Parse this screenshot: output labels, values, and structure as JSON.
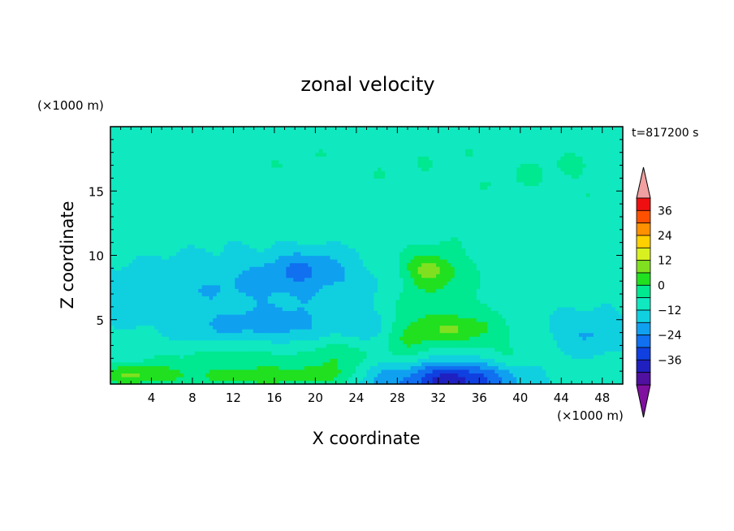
{
  "chart_data": {
    "type": "heatmap",
    "title": "zonal velocity",
    "xlabel": "X coordinate",
    "ylabel": "Z coordinate",
    "x_unit_label": "(×1000 m)",
    "y_unit_label": "(×1000 m)",
    "time_label": "t=817200 s",
    "xlim": [
      0,
      50
    ],
    "ylim": [
      0,
      20
    ],
    "x_ticks": [
      4,
      8,
      12,
      16,
      20,
      24,
      28,
      32,
      36,
      40,
      44,
      48
    ],
    "y_ticks": [
      5,
      10,
      15
    ],
    "colorbar": {
      "tick_labels": [
        "36",
        "24",
        "12",
        "0",
        "−12",
        "−24",
        "−36"
      ],
      "levels": [
        -42,
        -36,
        -30,
        -24,
        -18,
        -12,
        -6,
        0,
        6,
        12,
        18,
        24,
        30,
        36,
        42
      ],
      "colors": [
        "#5010a0",
        "#2020c0",
        "#1040e0",
        "#1070f0",
        "#10a0f0",
        "#10d0e0",
        "#10e8c0",
        "#00e890",
        "#20e020",
        "#80e020",
        "#d8f020",
        "#ffd000",
        "#ff9000",
        "#ff5000",
        "#ee1010"
      ],
      "under_color": "#8010a0",
      "over_color": "#f0a0a0"
    },
    "field": {
      "background_value": -4,
      "features": [
        {
          "x": 25,
          "z": 17,
          "rx": 30,
          "rz": 3.5,
          "value": 3
        },
        {
          "x": 45,
          "z": 16,
          "rx": 8,
          "rz": 3,
          "value": 2
        },
        {
          "x": 8,
          "z": 13,
          "rx": 10,
          "rz": 1.5,
          "value": 1
        },
        {
          "x": 14,
          "z": 7.5,
          "rx": 14,
          "rz": 2.5,
          "value": -8
        },
        {
          "x": 17,
          "z": 4.5,
          "rx": 11,
          "rz": 1.3,
          "value": -9
        },
        {
          "x": 19,
          "z": 9,
          "rx": 4,
          "rz": 1.5,
          "value": -10
        },
        {
          "x": 47,
          "z": 4,
          "rx": 4,
          "rz": 1.5,
          "value": -9
        },
        {
          "x": 16,
          "z": 2,
          "rx": 16,
          "rz": 1.3,
          "value": 6
        },
        {
          "x": 15,
          "z": 0.6,
          "rx": 10,
          "rz": 0.8,
          "value": 12
        },
        {
          "x": 2,
          "z": 0.7,
          "rx": 4,
          "rz": 0.8,
          "value": 13
        },
        {
          "x": 32,
          "z": 7,
          "rx": 4.5,
          "rz": 4,
          "value": 9
        },
        {
          "x": 31,
          "z": 9,
          "rx": 2.5,
          "rz": 1.2,
          "value": 13
        },
        {
          "x": 34,
          "z": 4.2,
          "rx": 5,
          "rz": 1.2,
          "value": 12
        },
        {
          "x": 29,
          "z": 4,
          "rx": 2,
          "rz": 3,
          "value": 6
        },
        {
          "x": 22,
          "z": 2,
          "rx": 1.5,
          "rz": 2.5,
          "value": 5
        },
        {
          "x": 21,
          "z": 5,
          "rx": 1.5,
          "rz": 2,
          "value": 4
        },
        {
          "x": 33,
          "z": 0.4,
          "rx": 6,
          "rz": 1.5,
          "value": -30
        },
        {
          "x": 26,
          "z": 0.5,
          "rx": 2,
          "rz": 1,
          "value": -6
        },
        {
          "x": 39,
          "z": 2,
          "rx": 3,
          "rz": 1,
          "value": 4
        }
      ]
    }
  }
}
